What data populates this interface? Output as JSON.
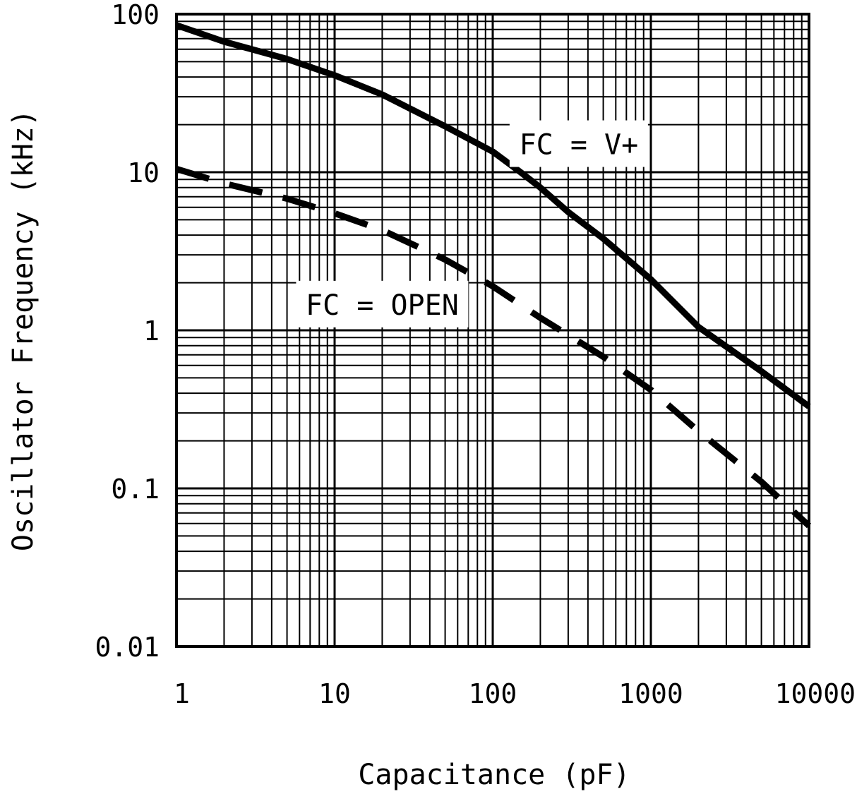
{
  "chart_data": {
    "type": "line",
    "title": "",
    "xlabel": "Capacitance (pF)",
    "ylabel": "Oscillator Frequency (kHz)",
    "x_scale": "log",
    "y_scale": "log",
    "xlim": [
      1,
      10000
    ],
    "ylim": [
      0.01,
      100
    ],
    "x_ticks": [
      1,
      10,
      100,
      1000,
      10000
    ],
    "x_tick_labels": [
      "1",
      "10",
      "100",
      "1000",
      "10000"
    ],
    "y_ticks": [
      0.01,
      0.1,
      1,
      10,
      100
    ],
    "y_tick_labels": [
      "0.01",
      "0.1",
      "1",
      "10",
      "100"
    ],
    "grid": true,
    "series": [
      {
        "name": "FC = V+",
        "style": "solid",
        "color": "#000000",
        "x": [
          1,
          2,
          5,
          10,
          20,
          50,
          100,
          150,
          200,
          300,
          500,
          1000,
          2000,
          5000,
          10000
        ],
        "y": [
          85,
          67,
          52,
          41,
          31,
          19.5,
          13.5,
          10,
          8,
          5.6,
          3.8,
          2.1,
          1.05,
          0.55,
          0.33
        ]
      },
      {
        "name": "FC = OPEN",
        "style": "dashed",
        "color": "#000000",
        "x": [
          1,
          2,
          5,
          10,
          20,
          50,
          100,
          200,
          500,
          1000,
          2000,
          5000,
          10000
        ],
        "y": [
          10.5,
          8.5,
          6.8,
          5.5,
          4.3,
          2.8,
          1.9,
          1.2,
          0.68,
          0.42,
          0.23,
          0.11,
          0.058
        ]
      }
    ],
    "annotations": [
      {
        "text": "FC = V+",
        "x": 350,
        "y": 15
      },
      {
        "text": "FC = OPEN",
        "x": 20,
        "y": 1.45
      }
    ]
  }
}
